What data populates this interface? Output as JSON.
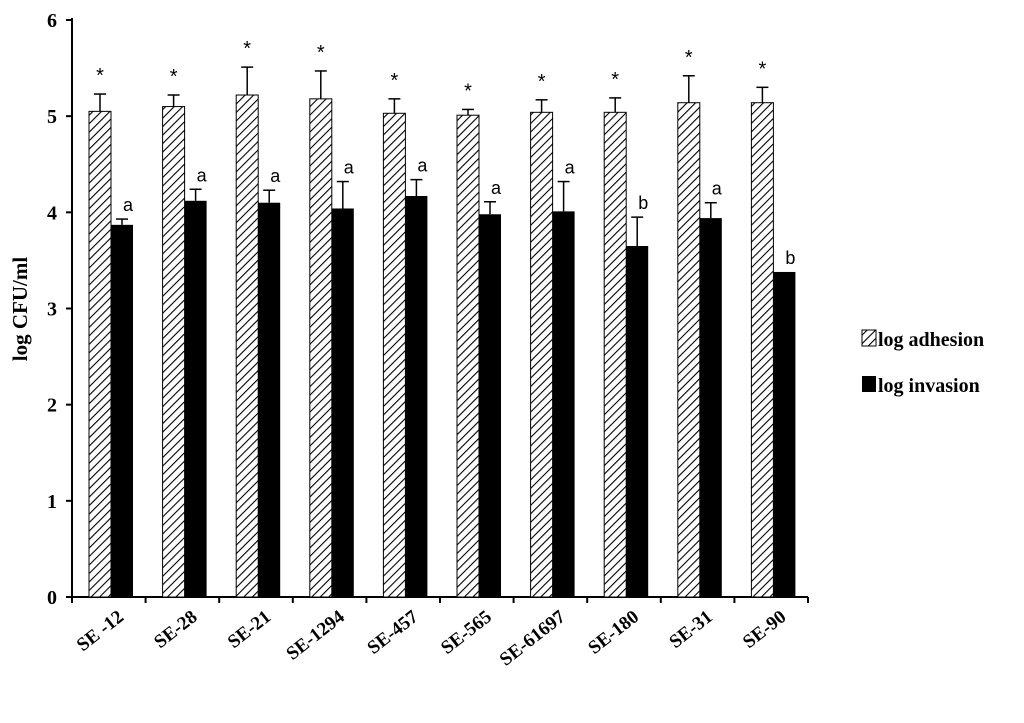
{
  "chart_data": {
    "type": "bar",
    "title": "",
    "xlabel": "",
    "ylabel": "log CFU/ml",
    "ylim": [
      0,
      6
    ],
    "yticks": [
      "0",
      "1",
      "2",
      "3",
      "4",
      "5",
      "6"
    ],
    "categories": [
      "SE-12",
      "SE-28",
      "SE-21",
      "SE-1294",
      "SE-457",
      "SE-565",
      "SE-61697",
      "SE-180",
      "SE-31",
      "SE-90"
    ],
    "category_labels": [
      "SE -12",
      "SE-28",
      "SE-21",
      "SE-1294",
      "SE-457",
      "SE-565",
      "SE-61697",
      "SE-180",
      "SE-31",
      "SE-90"
    ],
    "series": [
      {
        "name": "log adhesion",
        "pattern": "diagonal-hatch",
        "values": [
          5.05,
          5.1,
          5.22,
          5.18,
          5.03,
          5.01,
          5.04,
          5.04,
          5.14,
          5.14
        ],
        "errors": [
          0.18,
          0.12,
          0.29,
          0.29,
          0.15,
          0.06,
          0.13,
          0.15,
          0.28,
          0.16
        ],
        "annotations": [
          "*",
          "*",
          "*",
          "*",
          "*",
          "*",
          "*",
          "*",
          "*",
          "*"
        ]
      },
      {
        "name": "log invasion",
        "pattern": "solid",
        "values": [
          3.87,
          4.12,
          4.1,
          4.04,
          4.17,
          3.98,
          4.01,
          3.65,
          3.94,
          3.38
        ],
        "errors": [
          0.06,
          0.12,
          0.13,
          0.28,
          0.17,
          0.13,
          0.31,
          0.3,
          0.16,
          0.0
        ],
        "annotations": [
          "a",
          "a",
          "a",
          "a",
          "a",
          "a",
          "a",
          "b",
          "a",
          "b"
        ]
      }
    ],
    "grid": false,
    "legend_position": "right"
  },
  "colors": {
    "adhesion_fill": "#ffffff",
    "adhesion_hatch": "#000000",
    "invasion_fill": "#000000",
    "axis": "#000000"
  }
}
